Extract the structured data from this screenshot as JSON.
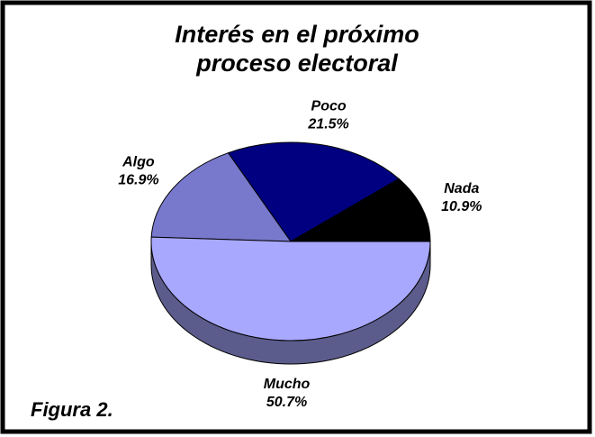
{
  "chart_data": {
    "type": "pie",
    "title_lines": [
      "Interés en el próximo",
      "proceso electoral"
    ],
    "annotation": "Figura 2.",
    "categories": [
      "Nada",
      "Poco",
      "Algo",
      "Mucho"
    ],
    "values": [
      10.9,
      21.5,
      16.9,
      50.7
    ],
    "value_labels": [
      "10.9%",
      "21.5%",
      "16.9%",
      "50.7%"
    ],
    "colors": [
      "#000000",
      "#000080",
      "#7878cc",
      "#a8a8ff"
    ]
  }
}
